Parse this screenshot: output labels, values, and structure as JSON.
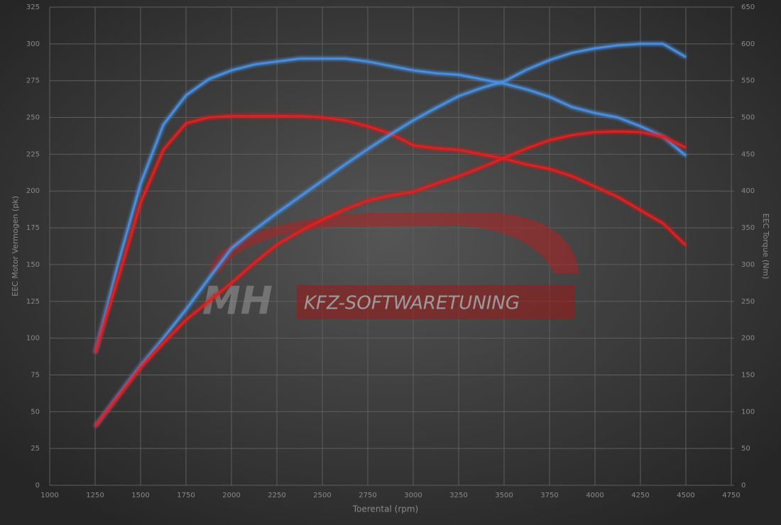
{
  "chart_data": {
    "type": "line",
    "xlabel": "Toerental (rpm)",
    "ylabel": "EEC Motor Vermogen (pk)",
    "y2label": "EEC Torque (Nm)",
    "annotations": [
      "MH",
      "KFZ-SOFTWARETUNING"
    ],
    "x": [
      1250,
      1375,
      1500,
      1625,
      1750,
      1875,
      2000,
      2125,
      2250,
      2375,
      2500,
      2625,
      2750,
      2875,
      3000,
      3125,
      3250,
      3375,
      3500,
      3625,
      3750,
      3875,
      4000,
      4125,
      4250,
      4375,
      4500
    ],
    "series": [
      {
        "color": "#4a90e2",
        "values": [
          90,
          150,
          205,
          245,
          265,
          276,
          282,
          286,
          288,
          290,
          290,
          290,
          288,
          285,
          282,
          280,
          279,
          276,
          273,
          269,
          264,
          257,
          253,
          250,
          244,
          237,
          224
        ]
      },
      {
        "color": "#e02020",
        "values": [
          90,
          140,
          192,
          228,
          246,
          250,
          251,
          251,
          251,
          251,
          250,
          248,
          244,
          239,
          231,
          229,
          228,
          225,
          222,
          218,
          215,
          210,
          203,
          196,
          187,
          178,
          163
        ]
      },
      {
        "color": "#4a90e2",
        "axis": "y2",
        "values": [
          80,
          122,
          163,
          200,
          239,
          281,
          322,
          347,
          370,
          392,
          414,
          436,
          457,
          477,
          496,
          513,
          529,
          540,
          549,
          565,
          578,
          588,
          594,
          598,
          600,
          600,
          582
        ]
      },
      {
        "color": "#e02020",
        "axis": "y2",
        "values": [
          80,
          120,
          160,
          193,
          225,
          250,
          275,
          302,
          327,
          345,
          361,
          375,
          387,
          394,
          399,
          410,
          420,
          432,
          445,
          458,
          469,
          476,
          480,
          481,
          480,
          474,
          459
        ]
      }
    ],
    "xlim": [
      1000,
      4750
    ],
    "xticks": [
      1000,
      1250,
      1500,
      1750,
      2000,
      2250,
      2500,
      2750,
      3000,
      3250,
      3500,
      3750,
      4000,
      4250,
      4500,
      4750
    ],
    "ylim": [
      0,
      325
    ],
    "yticks": [
      0,
      25,
      50,
      75,
      100,
      125,
      150,
      175,
      200,
      225,
      250,
      275,
      300,
      325
    ],
    "y2lim": [
      0,
      650
    ],
    "y2ticks": [
      0,
      50,
      100,
      150,
      200,
      250,
      300,
      350,
      400,
      450,
      500,
      550,
      600,
      650
    ],
    "grid": true
  }
}
